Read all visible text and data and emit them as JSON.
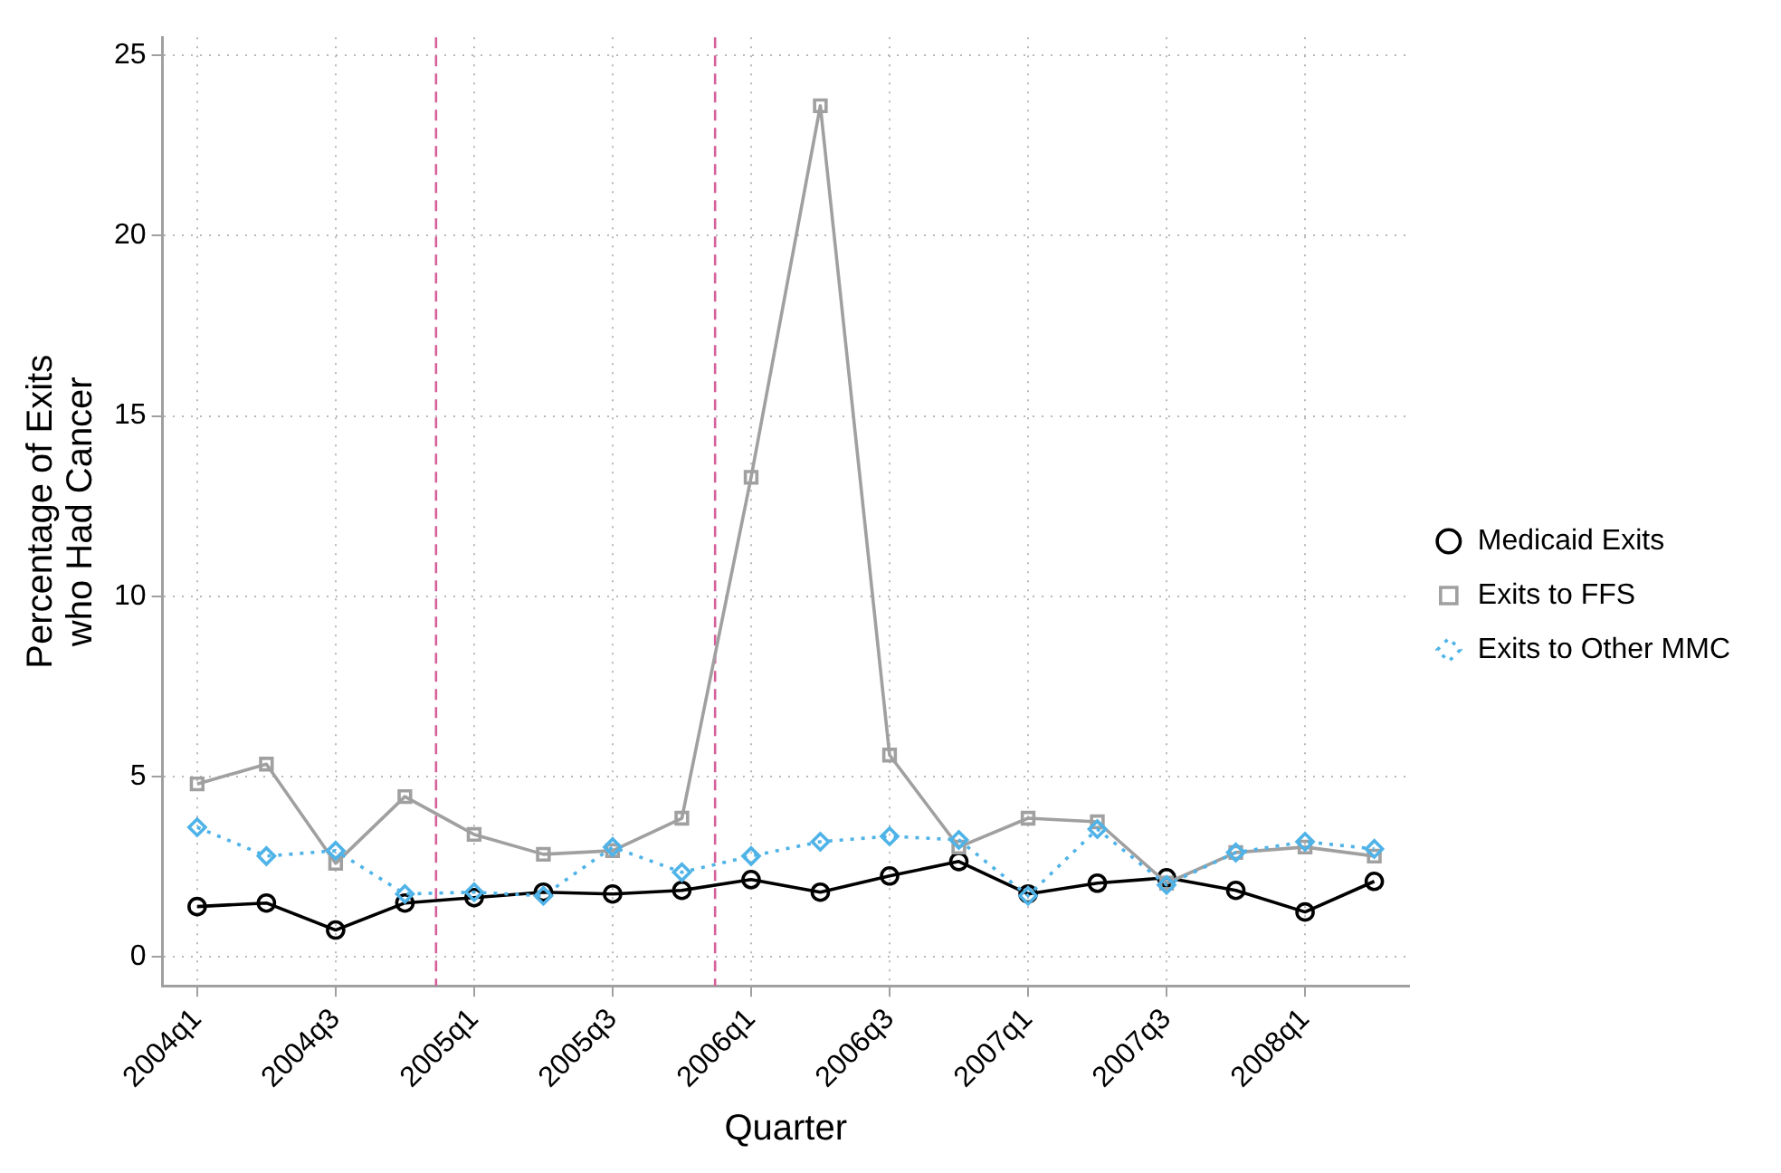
{
  "chart_data": {
    "type": "line",
    "xlabel": "Quarter",
    "ylabel": "Percentage of Exits who Had Cancer",
    "categories": [
      "2004q1",
      null,
      "2004q3",
      null,
      "2005q1",
      null,
      "2005q3",
      null,
      "2006q1",
      null,
      "2006q3",
      null,
      "2007q1",
      null,
      "2007q3",
      null,
      "2008q1",
      null
    ],
    "ylim": [
      -0.8,
      25.5
    ],
    "yticks": [
      0,
      5,
      10,
      15,
      20,
      25
    ],
    "grid": true,
    "legend": "right",
    "series": [
      {
        "name": "Medicaid Exits",
        "color": "#000000",
        "marker": "circle",
        "line_style": "solid",
        "values": [
          1.4,
          1.5,
          0.75,
          1.5,
          1.65,
          1.8,
          1.75,
          1.85,
          2.15,
          1.8,
          2.25,
          2.65,
          1.75,
          2.05,
          2.2,
          1.85,
          1.25,
          2.1
        ]
      },
      {
        "name": "Exits to FFS",
        "color": "#a0a0a0",
        "marker": "square",
        "line_style": "solid",
        "values": [
          4.8,
          5.35,
          2.6,
          4.45,
          3.4,
          2.85,
          2.95,
          3.85,
          13.3,
          23.6,
          5.6,
          3.05,
          3.85,
          3.75,
          2.05,
          2.9,
          3.05,
          2.8
        ]
      },
      {
        "name": "Exits to Other MMC",
        "color": "#4fb3e8",
        "marker": "diamond",
        "line_style": "dotted",
        "values": [
          3.6,
          2.8,
          2.95,
          1.75,
          1.8,
          1.7,
          3.05,
          2.35,
          2.8,
          3.2,
          3.35,
          3.25,
          1.7,
          3.55,
          2.0,
          2.9,
          3.2,
          3.0
        ]
      }
    ]
  }
}
